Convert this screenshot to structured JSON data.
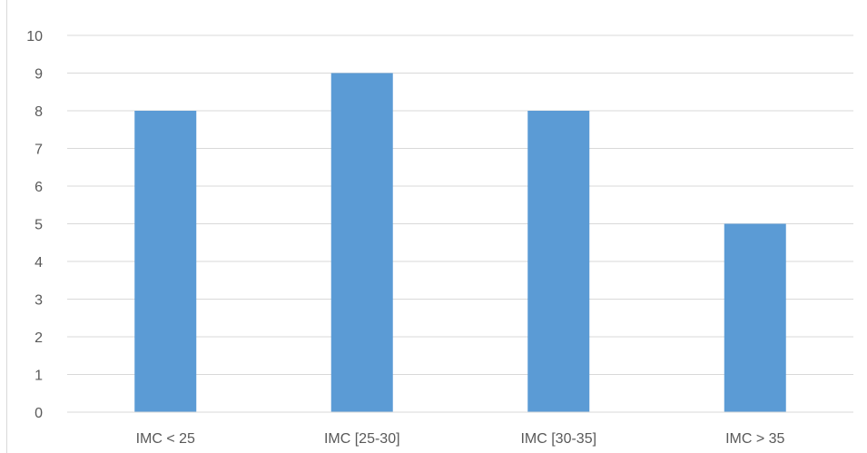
{
  "chart_data": {
    "type": "bar",
    "categories": [
      "IMC < 25",
      "IMC [25-30]",
      "IMC [30-35]",
      "IMC > 35"
    ],
    "values": [
      8,
      9,
      8,
      5
    ],
    "title": "",
    "xlabel": "",
    "ylabel": "",
    "ylim": [
      0,
      10
    ],
    "yticks": [
      "0",
      "1",
      "2",
      "3",
      "4",
      "5",
      "6",
      "7",
      "8",
      "9",
      "10"
    ],
    "grid": true,
    "legend": "none",
    "colors": {
      "bar": "#5b9bd5",
      "grid": "#d9d9d9",
      "axis": "#d9d9d9",
      "text": "#595959"
    }
  }
}
